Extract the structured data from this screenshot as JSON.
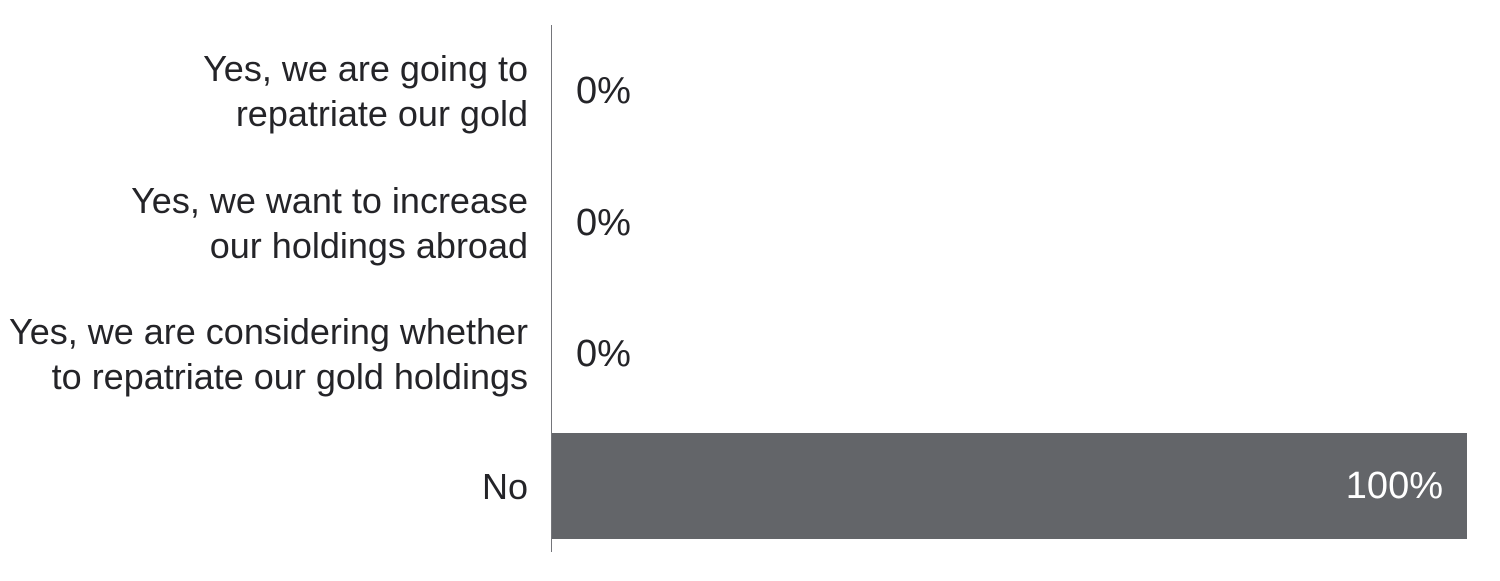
{
  "chart_data": {
    "type": "bar",
    "orientation": "horizontal",
    "title": "",
    "categories": [
      "Yes, we are going to\nrepatriate our gold",
      "Yes, we want to increase\nour holdings abroad",
      "Yes, we are considering whether\nto repatriate our gold holdings",
      "No"
    ],
    "values": [
      0,
      0,
      0,
      100
    ],
    "value_labels": [
      "0%",
      "0%",
      "0%",
      "100%"
    ],
    "xlim": [
      0,
      100
    ],
    "grid": false,
    "legend": false,
    "colors": {
      "bar": "#636569",
      "axis": "#74757a",
      "label_text": "#242428",
      "value_text_outside": "#242428",
      "value_text_inside": "#ffffff",
      "background": "#ffffff"
    }
  }
}
